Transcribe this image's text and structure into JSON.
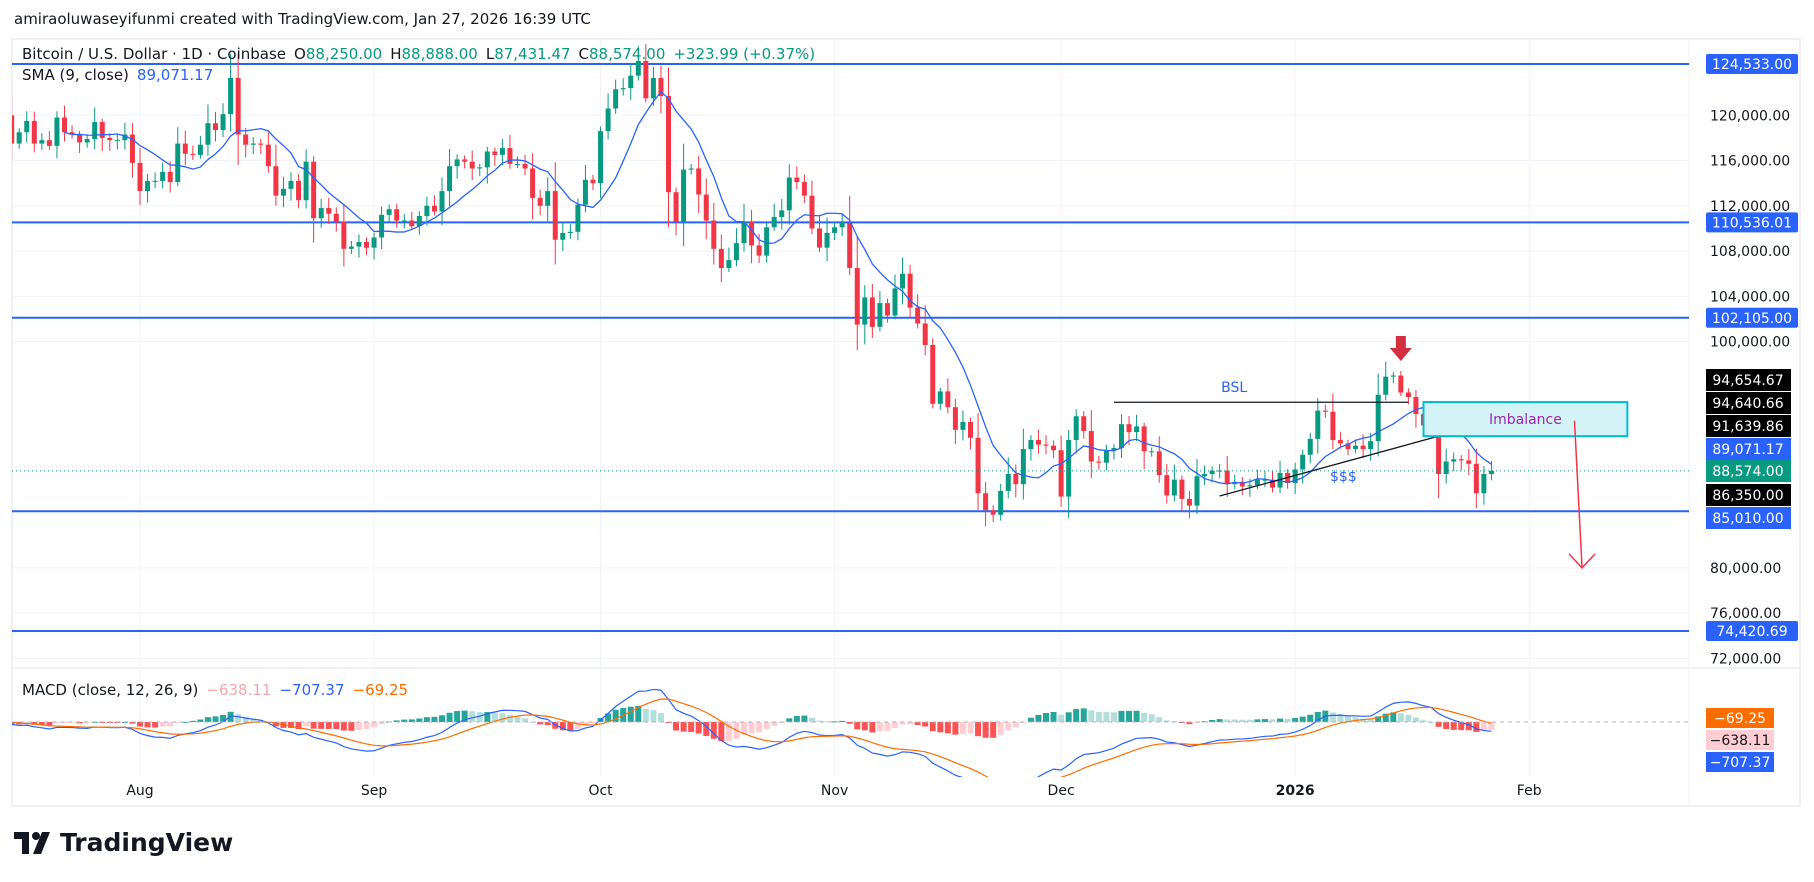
{
  "attribution": "amiraoluwaseyifunmi created with TradingView.com, Jan 27, 2026 16:39 UTC",
  "logo_text": "TradingView",
  "legend": {
    "symbol": "Bitcoin / U.S. Dollar · 1D · Coinbase",
    "o_label": "O",
    "o": "88,250.00",
    "h_label": "H",
    "h": "88,888.00",
    "l_label": "L",
    "l": "87,431.47",
    "c_label": "C",
    "c": "88,574.00",
    "change": "+323.99 (+0.37%)",
    "sma_label": "SMA (9, close)",
    "sma_value": "89,071.17"
  },
  "macd_legend": {
    "label": "MACD (close, 12, 26, 9)",
    "histogram": "−638.11",
    "macd": "−707.37",
    "signal": "−69.25"
  },
  "colors": {
    "up": "#089981",
    "down": "#f23645",
    "sma": "#2962ff",
    "level": "#2962ff",
    "macd": "#2962ff",
    "signal": "#ff6d00",
    "imbalance_fill": "#d4f3f6",
    "imbalance_border": "#00bcd4",
    "imbalance_text": "#9c27b0",
    "arrow": "#f23645"
  },
  "chart_data": {
    "type": "candlestick",
    "date_range": [
      "2025-07-14",
      "2026-01-27"
    ],
    "close": [
      120,
      117.5,
      118.5,
      119.5,
      117.5,
      117.8,
      117.3,
      119.8,
      118.5,
      118.3,
      117.6,
      117.9,
      119.4,
      118,
      117.8,
      117.8,
      118.3,
      115.8,
      113.3,
      114.2,
      114.2,
      115.0,
      114.1,
      117.5,
      116.6,
      116.5,
      117.4,
      119.3,
      118.7,
      120.1,
      123.3,
      118.3,
      117.4,
      117.5,
      117.4,
      115.5,
      112.9,
      113.5,
      114.2,
      112.5,
      115.9,
      110.9,
      111.8,
      111.3,
      110.6,
      108.2,
      108.4,
      108.8,
      108.3,
      109.2,
      111.2,
      111.7,
      110.7,
      110.7,
      110.2,
      111.1,
      112.0,
      111.5,
      113.3,
      115.5,
      116.1,
      115.9,
      115.3,
      115.4,
      116.8,
      116.5,
      117.1,
      115.7,
      115.7,
      115.3,
      112.7,
      112.0,
      113.3,
      109.0,
      109.6,
      109.7,
      112.1,
      114.3,
      114.0,
      118.6,
      120.6,
      122.3,
      122.4,
      123.5,
      124.8,
      121.5,
      123.3,
      121.7,
      113.2,
      110.6,
      115.2,
      115.3,
      113.0,
      110.7,
      108.2,
      106.5,
      107.2,
      108.7,
      110.6,
      108.5,
      107.6,
      110.1,
      111.0,
      111.6,
      114.5,
      114.1,
      112.9,
      110.0,
      108.3,
      109.6,
      110.1,
      110.5,
      106.5,
      101.5,
      103.9,
      101.3,
      103.4,
      102.3,
      104.7,
      106.0,
      103.0,
      101.6,
      99.7,
      94.5,
      95.6,
      94.2,
      92.2,
      92.9,
      91.5,
      86.6,
      85.1,
      84.7,
      86.8,
      88.3,
      87.4,
      90.5,
      91.3,
      90.9,
      90.8,
      90.4,
      86.3,
      91.3,
      93.4,
      92.1,
      89.4,
      89.3,
      90.4,
      90.6,
      92.7,
      92.0,
      92.5,
      90.3,
      90.3,
      88.2,
      86.4,
      87.8,
      86.1,
      85.5,
      88.1,
      88.3,
      88.6,
      88.6,
      87.4,
      87.6,
      87.2,
      87.3,
      87.8,
      87.8,
      87.1,
      88.4,
      87.5,
      88.7,
      90.0,
      91.4,
      93.9,
      93.8,
      91.3,
      91.0,
      90.5,
      90.8,
      90.5,
      91.2,
      95.3,
      96.9,
      97.0,
      95.5,
      95.1,
      93.6,
      92.6,
      93.0,
      88.3,
      89.4,
      89.6,
      89.5,
      89.2,
      86.6,
      88.3,
      88.574
    ],
    "close_unit": "thousand USD",
    "sma_period": 9,
    "macd_params": [
      12,
      26,
      9
    ],
    "x_ticks": [
      {
        "label": "Aug",
        "date": "2025-08-01"
      },
      {
        "label": "Sep",
        "date": "2025-09-01"
      },
      {
        "label": "Oct",
        "date": "2025-10-01"
      },
      {
        "label": "Nov",
        "date": "2025-11-01"
      },
      {
        "label": "Dec",
        "date": "2025-12-01"
      },
      {
        "label": "2026",
        "date": "2026-01-01",
        "bold": true
      },
      {
        "label": "Feb",
        "date": "2026-02-01"
      }
    ],
    "y_ticks": [
      120000,
      116000,
      112000,
      108000,
      104000,
      100000,
      80000,
      76000,
      72000
    ],
    "y_tick_labels": [
      "120,000.00",
      "116,000.00",
      "112,000.00",
      "108,000.00",
      "104,000.00",
      "100,000.00",
      "80,000.00",
      "76,000.00",
      "72,000.00"
    ],
    "levels": [
      {
        "value": 124533,
        "label": "124,533.00"
      },
      {
        "value": 110536.01,
        "label": "110,536.01"
      },
      {
        "value": 102105,
        "label": "102,105.00"
      },
      {
        "value": 85010,
        "label": "85,010.00"
      },
      {
        "value": 74420.69,
        "label": "74,420.69"
      }
    ],
    "marker_labels": [
      {
        "value": 94654.67,
        "label": "94,654.67",
        "style": "black"
      },
      {
        "value": 94640.66,
        "label": "94,640.66",
        "style": "black"
      },
      {
        "value": 91639.86,
        "label": "91,639.86",
        "style": "black"
      },
      {
        "value": 89071.17,
        "label": "89,071.17",
        "style": "blue"
      },
      {
        "value": 88574,
        "label": "88,574.00",
        "style": "green"
      },
      {
        "value": 86350,
        "label": "86,350.00",
        "style": "black"
      },
      {
        "value": 85010,
        "label": "85,010.00",
        "style": "blue"
      }
    ],
    "macd_labels": [
      {
        "label": "−69.25",
        "style": "orange"
      },
      {
        "label": "−638.11",
        "style": "pink"
      },
      {
        "label": "−707.37",
        "style": "blue"
      }
    ],
    "annotations": {
      "bsl": {
        "text": "BSL",
        "price": 94640.66,
        "from": "2025-12-08",
        "to": "2026-01-16"
      },
      "liquidity": {
        "text": "$$$",
        "from": [
          "2025-12-22",
          86350
        ],
        "to": [
          "2026-01-20",
          91639.86
        ]
      },
      "imbalance": {
        "text": "Imbalance",
        "top": 94654.67,
        "bottom": 91639.86,
        "from": "2026-01-18",
        "to": "2026-02-14"
      },
      "top_arrow": {
        "date": "2026-01-15",
        "direction": "down"
      },
      "target_arrow": {
        "from": [
          "2026-02-07",
          93000
        ],
        "to": [
          "2026-02-08",
          80000
        ]
      }
    }
  }
}
